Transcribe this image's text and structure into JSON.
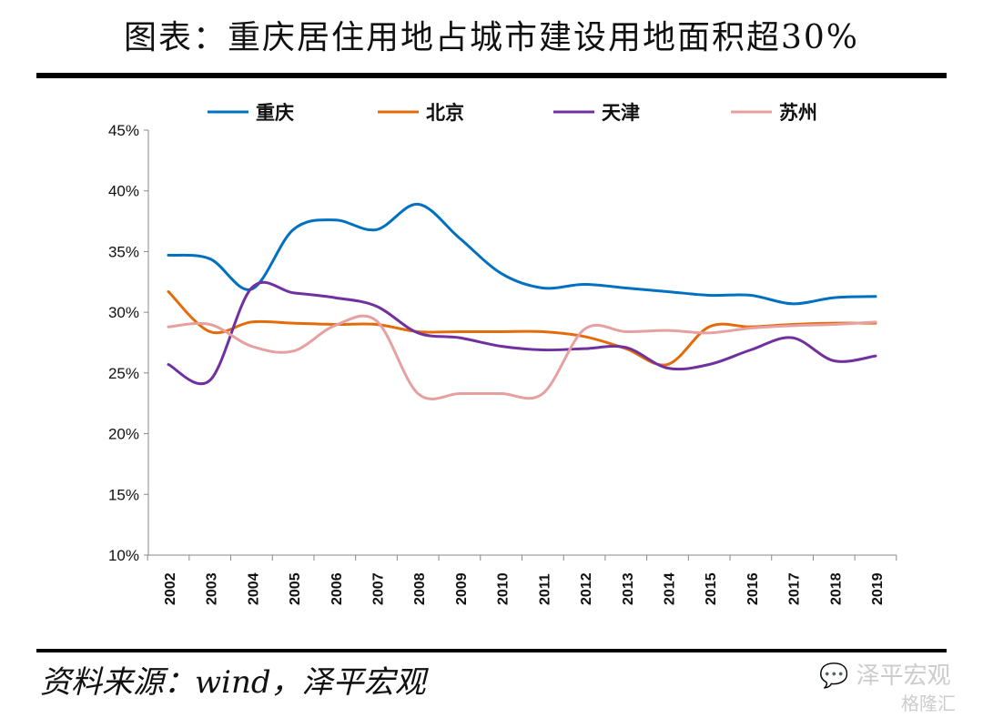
{
  "title": "图表：重庆居住用地占城市建设用地面积超30%",
  "source": "资料来源：wind，泽平宏观",
  "watermark": {
    "text": "泽平宏观",
    "sub": "格隆汇"
  },
  "chart_data": {
    "type": "line",
    "title": "",
    "xlabel": "",
    "ylabel": "",
    "x": [
      "2002",
      "2003",
      "2004",
      "2005",
      "2006",
      "2007",
      "2008",
      "2009",
      "2010",
      "2011",
      "2012",
      "2013",
      "2014",
      "2015",
      "2016",
      "2017",
      "2018",
      "2019"
    ],
    "ylim": [
      10,
      45
    ],
    "yticks": [
      "10%",
      "15%",
      "20%",
      "25%",
      "30%",
      "35%",
      "40%",
      "45%"
    ],
    "grid": false,
    "legend": "top",
    "series": [
      {
        "name": "重庆",
        "color": "#0070C0",
        "values": [
          34.7,
          34.4,
          31.9,
          36.8,
          37.6,
          36.8,
          38.9,
          36.1,
          33.2,
          32.0,
          32.3,
          32.0,
          31.7,
          31.4,
          31.4,
          30.7,
          31.2,
          31.3
        ]
      },
      {
        "name": "北京",
        "color": "#E36C09",
        "values": [
          31.7,
          28.4,
          29.2,
          29.1,
          29.0,
          29.0,
          28.4,
          28.4,
          28.4,
          28.4,
          28.0,
          27.0,
          25.7,
          28.8,
          28.8,
          29.0,
          29.1,
          29.1
        ]
      },
      {
        "name": "天津",
        "color": "#7030A0",
        "values": [
          25.7,
          24.4,
          32.0,
          31.6,
          31.2,
          30.5,
          28.3,
          27.9,
          27.2,
          26.9,
          27.0,
          27.1,
          25.4,
          25.7,
          26.9,
          27.9,
          26.0,
          26.4
        ]
      },
      {
        "name": "苏州",
        "color": "#E6A0A0",
        "values": [
          28.8,
          29.0,
          27.2,
          26.8,
          28.9,
          29.3,
          23.3,
          23.3,
          23.3,
          23.3,
          28.6,
          28.4,
          28.5,
          28.3,
          28.7,
          28.9,
          29.0,
          29.2
        ]
      }
    ]
  }
}
